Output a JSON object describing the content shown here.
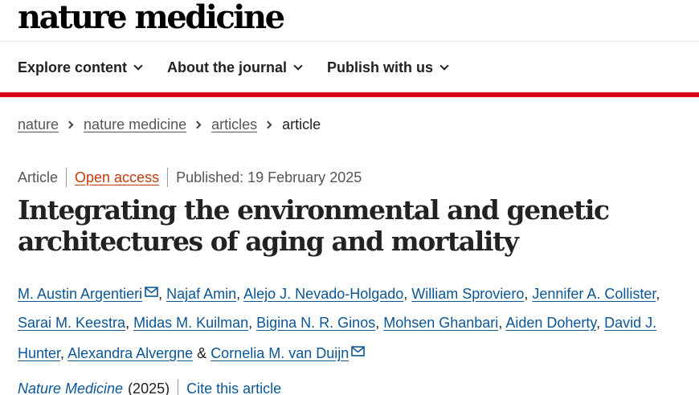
{
  "masthead": {
    "logo": "nature medicine"
  },
  "nav": {
    "items": [
      {
        "label": "Explore content"
      },
      {
        "label": "About the journal"
      },
      {
        "label": "Publish with us"
      }
    ]
  },
  "colors": {
    "accent_bar": "#dc0018",
    "link": "#0b5696",
    "open_access": "#c23b0b"
  },
  "breadcrumb": {
    "items": [
      {
        "label": "nature"
      },
      {
        "label": "nature medicine"
      },
      {
        "label": "articles"
      }
    ],
    "current": "article"
  },
  "meta": {
    "type": "Article",
    "access": "Open access",
    "published": "Published: 19 February 2025"
  },
  "article": {
    "title": "Integrating the environmental and genetic architectures of aging and mortality",
    "authors": [
      "M. Austin Argentieri",
      "Najaf Amin",
      "Alejo J. Nevado-Holgado",
      "William Sproviero",
      "Jennifer A. Collister",
      "Sarai M. Keestra",
      "Midas M. Kuilman",
      "Bigina N. R. Ginos",
      "Mohsen Ghanbari",
      "Aiden Doherty",
      "David J. Hunter",
      "Alexandra Alvergne",
      "Cornelia M. van Duijn"
    ],
    "author_joiner": "&",
    "corresponding_icon": "mail-icon"
  },
  "citation": {
    "journal": "Nature Medicine",
    "year": "(2025)",
    "cite_label": "Cite this article"
  }
}
